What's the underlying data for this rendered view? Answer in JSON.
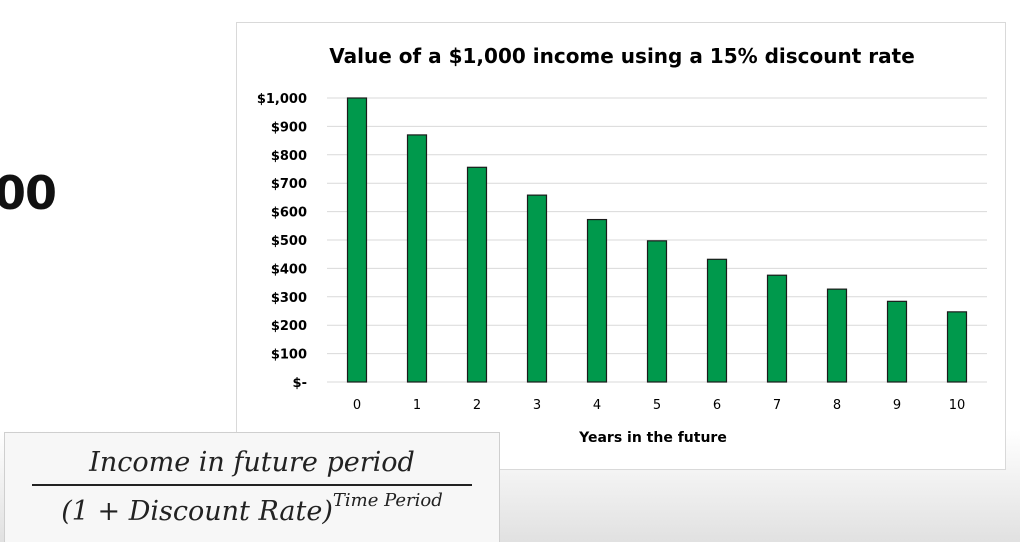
{
  "left_fragment": "00",
  "formula": {
    "numerator": "Income in future period",
    "denominator_base": "(1 + Discount Rate)",
    "denominator_exponent": "Time Period"
  },
  "chart_data": {
    "type": "bar",
    "title": "Value of a $1,000 income using a 15% discount rate",
    "xlabel": "Years in the future",
    "ylabel": "",
    "categories": [
      "0",
      "1",
      "2",
      "3",
      "4",
      "5",
      "6",
      "7",
      "8",
      "9",
      "10"
    ],
    "values": [
      1000,
      870,
      756,
      658,
      572,
      497,
      432,
      376,
      327,
      284,
      247
    ],
    "ylim": [
      0,
      1000
    ],
    "yticks": [
      0,
      100,
      200,
      300,
      400,
      500,
      600,
      700,
      800,
      900,
      1000
    ],
    "ytick_labels": [
      "$-",
      "$100",
      "$200",
      "$300",
      "$400",
      "$500",
      "$600",
      "$700",
      "$800",
      "$900",
      "$1,000"
    ],
    "grid": true,
    "legend": "none",
    "bar_color": "#00994c",
    "bar_edge_color": "#1b1b1b",
    "grid_color": "#d9d9d9"
  }
}
